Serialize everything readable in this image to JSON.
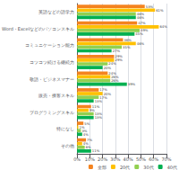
{
  "chart_data": {
    "type": "bar",
    "orientation": "horizontal",
    "categories": [
      "英語などの語学力",
      "Word・Excelなどのパソコンスキル",
      "コミュニケーション能力",
      "コツコツ続ける継続力",
      "敬語・ビジネスマナー",
      "販売・接客スキル",
      "プログラミングスキル",
      "特になし",
      "その他"
    ],
    "series": [
      {
        "name": "全部",
        "color": "#F4831F",
        "values": [
          53,
          47,
          36,
          29,
          24,
          17,
          11,
          5,
          7
        ],
        "value_labels": [
          "53%",
          "47%",
          "36%",
          "29%",
          "24%",
          "17%",
          "11%",
          "5%",
          "7%"
        ]
      },
      {
        "name": "20代",
        "color": "#FFC000",
        "values": [
          61,
          64,
          46,
          29,
          26,
          20,
          9,
          1,
          4
        ],
        "value_labels": [
          "61%",
          "64%",
          "46%",
          "29%",
          "26%",
          "20%",
          "9%",
          "1%",
          "4%"
        ]
      },
      {
        "name": "30代",
        "color": "#92D050",
        "values": [
          46,
          49,
          35,
          24,
          26,
          17,
          13,
          3,
          6
        ],
        "value_labels": [
          "46%",
          "49%",
          "35%",
          "24%",
          "26%",
          "17%",
          "13%",
          "3%",
          "6%"
        ]
      },
      {
        "name": "40代",
        "color": "#00B050",
        "values": [
          46,
          45,
          27,
          20,
          39,
          13,
          13,
          4,
          11
        ],
        "value_labels": [
          "46%",
          "45%",
          "27%",
          "20%",
          "39%",
          "13%",
          "13%",
          "4%",
          "11%"
        ]
      }
    ],
    "xlim": [
      0,
      70
    ],
    "xticks": [
      {
        "value": 0,
        "label": "0%"
      },
      {
        "value": 10,
        "label": "10%"
      },
      {
        "value": 20,
        "label": "20%"
      },
      {
        "value": 30,
        "label": "30%"
      },
      {
        "value": 40,
        "label": "40%"
      },
      {
        "value": 50,
        "label": "50%"
      },
      {
        "value": 60,
        "label": "60%"
      },
      {
        "value": 70,
        "label": "70%"
      }
    ],
    "grid": true,
    "legend": "lower right",
    "data_labels": true
  }
}
